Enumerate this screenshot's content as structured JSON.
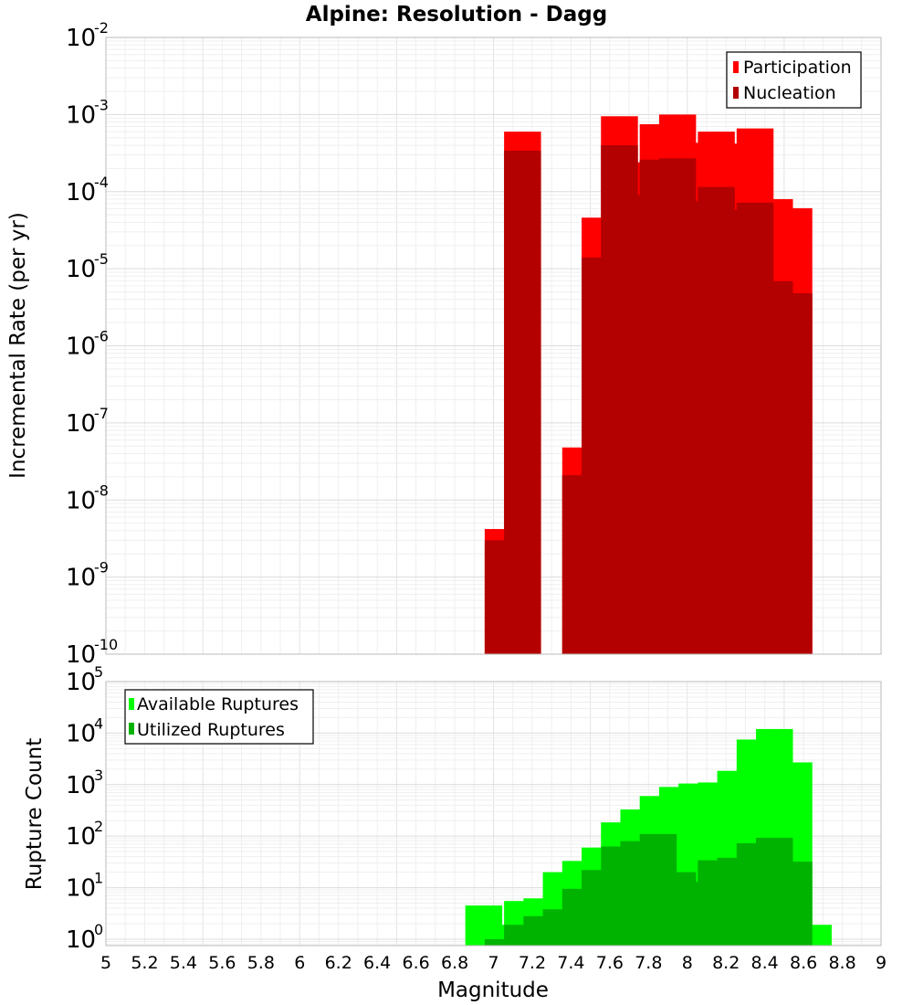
{
  "chart_data": [
    {
      "type": "bar",
      "title": "Alpine: Resolution - Dagg",
      "ylabel": "Incremental Rate (per yr)",
      "xlabel": "",
      "y_scale": "log",
      "ylim": [
        1e-10,
        0.01
      ],
      "xlim": [
        5,
        9
      ],
      "y_ticks": [
        {
          "base": "10",
          "exp": "-10"
        },
        {
          "base": "10",
          "exp": "-9"
        },
        {
          "base": "10",
          "exp": "-8"
        },
        {
          "base": "10",
          "exp": "-7"
        },
        {
          "base": "10",
          "exp": "-6"
        },
        {
          "base": "10",
          "exp": "-5"
        },
        {
          "base": "10",
          "exp": "-4"
        },
        {
          "base": "10",
          "exp": "-3"
        },
        {
          "base": "10",
          "exp": "-2"
        }
      ],
      "grid": true,
      "legend_position": "top-right",
      "x": [
        7.05,
        7.15,
        7.45,
        7.55,
        7.65,
        7.75,
        7.85,
        7.95,
        8.05,
        8.15,
        8.25,
        8.35,
        8.45,
        8.55
      ],
      "series": [
        {
          "name": "Participation",
          "color": "#ff0000",
          "values": [
            4.2e-09,
            0.0006,
            4.8e-08,
            4.6e-05,
            0.00095,
            0.00024,
            0.00075,
            0.001,
            0.00043,
            0.0006,
            0.00042,
            0.00066,
            8e-05,
            6.1e-05
          ]
        },
        {
          "name": "Nucleation",
          "color": "#b30000",
          "values": [
            3e-09,
            0.00034,
            2.1e-08,
            1.4e-05,
            0.0004,
            9e-05,
            0.00026,
            0.00027,
            7.5e-05,
            0.000115,
            5.8e-05,
            7.2e-05,
            6.9e-06,
            4.8e-06
          ]
        }
      ]
    },
    {
      "type": "bar",
      "title": "",
      "ylabel": "Rupture Count",
      "xlabel": "Magnitude",
      "y_scale": "log",
      "ylim": [
        0.75,
        100000.0
      ],
      "xlim": [
        5,
        9
      ],
      "y_ticks": [
        {
          "base": "10",
          "exp": "0"
        },
        {
          "base": "10",
          "exp": "1"
        },
        {
          "base": "10",
          "exp": "2"
        },
        {
          "base": "10",
          "exp": "3"
        },
        {
          "base": "10",
          "exp": "4"
        },
        {
          "base": "10",
          "exp": "5"
        }
      ],
      "x_ticks": [
        "5",
        "5.2",
        "5.4",
        "5.6",
        "5.8",
        "6",
        "6.2",
        "6.4",
        "6.6",
        "6.8",
        "7",
        "7.2",
        "7.4",
        "7.6",
        "7.8",
        "8",
        "8.2",
        "8.4",
        "8.6",
        "8.8",
        "9"
      ],
      "grid": true,
      "legend_position": "top-left",
      "x": [
        6.95,
        7.05,
        7.15,
        7.25,
        7.35,
        7.45,
        7.55,
        7.65,
        7.75,
        7.85,
        7.95,
        8.05,
        8.15,
        8.25,
        8.35,
        8.45,
        8.55,
        8.65
      ],
      "series": [
        {
          "name": "Available Ruptures",
          "color": "#00ff00",
          "values": [
            4.5,
            1.9,
            5.5,
            6.2,
            20,
            33,
            60,
            185,
            330,
            600,
            900,
            1050,
            1100,
            1850,
            7500,
            12000,
            2700,
            1.9
          ]
        },
        {
          "name": "Utilized Ruptures",
          "color": "#00b300",
          "values": [
            null,
            1.0,
            1.9,
            2.8,
            3.8,
            9.5,
            22,
            63,
            80,
            110,
            20,
            13,
            34,
            38,
            73,
            93,
            32,
            null
          ]
        }
      ]
    }
  ]
}
